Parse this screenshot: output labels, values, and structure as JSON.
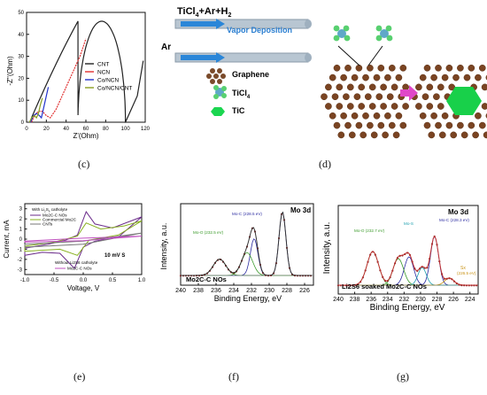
{
  "panels": {
    "c": {
      "caption": "(c)",
      "xlabel": "Z'(Ohm)",
      "ylabel": "-Z''(Ohm)",
      "xticks": [
        "0",
        "20",
        "40",
        "60",
        "80",
        "100",
        "120"
      ],
      "yticks": [
        "0",
        "10",
        "20",
        "30",
        "40",
        "50"
      ],
      "xlim": [
        0,
        120
      ],
      "ylim": [
        0,
        50
      ],
      "legend": [
        "CNT",
        "NCN",
        "Co/NCN",
        "Co/NCN/CNT"
      ],
      "colors": {
        "CNT": "#222222",
        "NCN": "#e03030",
        "Co/NCN": "#2233cc",
        "Co/NCN/CNT": "#8aa020"
      }
    },
    "d": {
      "caption": "(d)",
      "reaction": "TiCl",
      "reaction_sub": "4",
      "reaction_rest": "+Ar+H",
      "reaction_sub2": "2",
      "process": "Vapor Deposition",
      "gas": "Ar",
      "legend": [
        {
          "label": "Graphene",
          "icon": "graphene-icon"
        },
        {
          "label": "TiCl",
          "sub": "4",
          "icon": "ticl4-molecule-icon"
        },
        {
          "label": "TiC",
          "icon": "tic-hexagon-icon"
        }
      ]
    },
    "e": {
      "caption": "(e)",
      "xlabel": "Voltage, V",
      "ylabel": "Current, mA",
      "xticks": [
        "-1.0",
        "-0.5",
        "0.0",
        "0.5",
        "1.0"
      ],
      "yticks": [
        "-3",
        "-2",
        "-1",
        "0",
        "1",
        "2",
        "3"
      ],
      "legend_title_1": "With Li",
      "legend_title_1_sub": "2",
      "legend_title_1_rest": "S",
      "legend_title_1_sub2": "6",
      "legend_title_1_end": " catholyte",
      "legend": [
        "Mo2C-C NOs",
        "Commercial Mo2C",
        "CNTs"
      ],
      "legend_title_2": "Without Li2S6 catholyte",
      "legend_2": [
        "Mo2C-C NOs"
      ],
      "scan_rate": "10 mV S"
    },
    "f": {
      "caption": "(f)",
      "title": "Mo 3d",
      "xlabel": "Binding Energy, eV",
      "ylabel": "Intensity, a.u.",
      "xticks": [
        "240",
        "238",
        "236",
        "234",
        "232",
        "230",
        "228",
        "226"
      ],
      "peak1": "Mo-C (228.5 eV)",
      "peak2": "Mo-O (232.5 eV)",
      "sample": "Mo2C-C NOs"
    },
    "g": {
      "caption": "(g)",
      "title": "Mo 3d",
      "xlabel": "Binding Energy, eV",
      "ylabel": "Intensity, a.u.",
      "xticks": [
        "240",
        "238",
        "236",
        "234",
        "232",
        "230",
        "228",
        "226",
        "224"
      ],
      "peak1": "Mo-C (228.3 eV)",
      "peak2": "Mo-O (232.7 eV)",
      "peak3": "Mo-S",
      "peak4": "Sx",
      "peak4_val": "(226.5 eV)",
      "sample": "Li2S6 soaked Mo2C-C NOs"
    }
  }
}
